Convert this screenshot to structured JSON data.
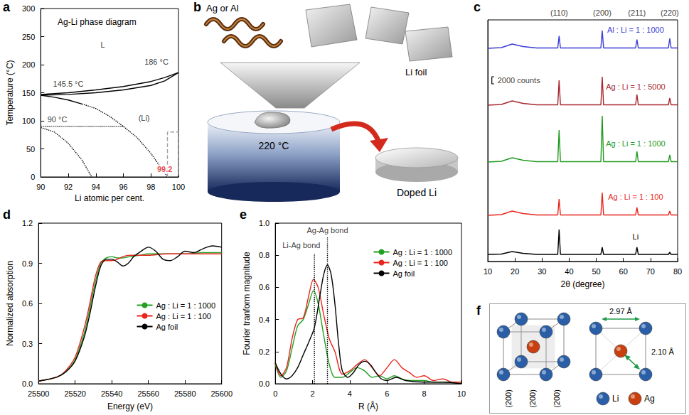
{
  "chart_data": [
    {
      "panel": "a",
      "type": "line",
      "title": "Ag-Li phase diagram",
      "x_label": "Li atomic per cent.",
      "y_label": "Temperature (°C)",
      "xlim": [
        90,
        100
      ],
      "xticks": [
        90,
        92,
        94,
        96,
        98,
        100
      ],
      "ylim": [
        0,
        300
      ],
      "yticks": [
        0,
        50,
        100,
        150,
        200,
        250,
        300
      ],
      "grid": false,
      "series": [
        {
          "x": [
            90,
            92,
            94,
            96,
            98,
            99,
            100
          ],
          "values": [
            147,
            150,
            155,
            161,
            170,
            177,
            186
          ],
          "color": "#000000",
          "line_style": "solid"
        },
        {
          "x": [
            90,
            92,
            94,
            96,
            98,
            99,
            100
          ],
          "values": [
            145.5,
            147,
            150,
            155,
            163,
            171,
            186
          ],
          "color": "#000000",
          "line_style": "solid"
        },
        {
          "x": [
            90,
            91,
            92,
            93
          ],
          "values": [
            145.5,
            142,
            137,
            130
          ],
          "color": "#000000",
          "line_style": "solid"
        },
        {
          "x": [
            93,
            94,
            95,
            96,
            97,
            98,
            99.2
          ],
          "values": [
            130,
            122,
            108,
            90,
            70,
            42,
            0
          ],
          "color": "#000000",
          "line_style": "dotted"
        },
        {
          "x": [
            90,
            96
          ],
          "values": [
            90,
            90
          ],
          "color": "#000000",
          "line_style": "dotted"
        },
        {
          "x": [
            90,
            91,
            92,
            93,
            93.7
          ],
          "values": [
            88,
            80,
            60,
            30,
            0
          ],
          "color": "#000000",
          "line_style": "dotted"
        },
        {
          "x": [
            99.2,
            99.2,
            100,
            100
          ],
          "values": [
            0,
            80,
            80,
            0
          ],
          "color": "#a0a0a0",
          "line_style": "dashed"
        }
      ],
      "annotations": [
        {
          "text": "L",
          "x": 94.5,
          "y": 235
        },
        {
          "text": "(Li)",
          "x": 97.5,
          "y": 105
        },
        {
          "text": "145.5 °C",
          "x": 92,
          "y": 166
        },
        {
          "text": "186 °C",
          "x": 98.4,
          "y": 205
        },
        {
          "text": "90 °C",
          "x": 91.2,
          "y": 103
        },
        {
          "text": "99.2",
          "x": 99,
          "y": 14,
          "color": "#e0201b"
        }
      ]
    },
    {
      "panel": "c",
      "type": "line",
      "x_label": "2θ (degree)",
      "xlim": [
        10,
        80
      ],
      "xticks": [
        10,
        20,
        30,
        40,
        50,
        60,
        70,
        80
      ],
      "ylim": [
        0,
        68000
      ],
      "tick_labels": "x",
      "grid": false,
      "x": [
        10,
        15,
        19,
        23,
        28,
        35.8,
        36.3,
        36.8,
        51.7,
        52.2,
        52.7,
        64.5,
        65,
        65.5,
        76.6,
        77.1,
        77.6,
        80
      ],
      "series": [
        {
          "name": "Al : Li = 1 : 1000",
          "color": "#3b3bd6",
          "values": [
            60000,
            60200,
            61200,
            60500,
            60100,
            60100,
            63500,
            60100,
            60100,
            65000,
            60100,
            60100,
            62500,
            60100,
            60100,
            62800,
            60100,
            60100
          ]
        },
        {
          "name": "Ag : Li = 1 : 5000",
          "color": "#a8262e",
          "values": [
            44000,
            44200,
            45200,
            44500,
            44100,
            44100,
            51000,
            44100,
            44100,
            52000,
            44100,
            44100,
            47000,
            44100,
            44100,
            46000,
            44100,
            44100
          ]
        },
        {
          "name": "Ag : Li = 1 : 1000",
          "color": "#1f9a1f",
          "values": [
            28000,
            28200,
            29200,
            28500,
            28100,
            28100,
            37000,
            28100,
            28100,
            41000,
            28100,
            28100,
            31000,
            28100,
            28100,
            30000,
            28100,
            28100
          ]
        },
        {
          "name": "Ag : Li = 1 : 100",
          "color": "#e8261e",
          "values": [
            13000,
            13200,
            14200,
            13500,
            13100,
            13100,
            17600,
            13100,
            13100,
            19400,
            13100,
            13100,
            15200,
            13100,
            13100,
            14200,
            13100,
            13100
          ]
        },
        {
          "name": "Li",
          "color": "#000000",
          "values": [
            2000,
            2100,
            2800,
            2300,
            2000,
            2000,
            9000,
            2000,
            2000,
            4000,
            2000,
            2000,
            4000,
            2000,
            2000,
            2600,
            2000,
            2000
          ]
        }
      ],
      "annotations": [
        {
          "text": "(110)",
          "x": 36.3,
          "y": 68000
        },
        {
          "text": "(200)",
          "x": 52.2,
          "y": 68000
        },
        {
          "text": "(211)",
          "x": 65,
          "y": 68000
        },
        {
          "text": "(220)",
          "x": 77.1,
          "y": 68000
        }
      ],
      "scale_bar": {
        "label": "2000 counts",
        "value": 2000,
        "x": 11.5,
        "y": 50000
      }
    },
    {
      "panel": "d",
      "type": "line",
      "x_label": "Energy (eV)",
      "y_label": "Normalized absorption",
      "xlim": [
        25500,
        25600
      ],
      "xticks": [
        25500,
        25520,
        25540,
        25560,
        25580,
        25600
      ],
      "ylim": [
        0,
        1.2
      ],
      "yticks": [
        {
          "value": 0,
          "label": "0.0"
        },
        0.3,
        0.6,
        0.9,
        1.2
      ],
      "grid": false,
      "legend": "lower right",
      "series": [
        {
          "name": "Ag : Li = 1 : 1000",
          "color": "#22a022",
          "x": [
            25500,
            25510,
            25515,
            25520,
            25525,
            25528,
            25531,
            25534,
            25537,
            25540,
            25543,
            25546,
            25550,
            25555,
            25560,
            25570,
            25580,
            25590,
            25600
          ],
          "values": [
            0.02,
            0.05,
            0.09,
            0.18,
            0.38,
            0.56,
            0.76,
            0.9,
            0.94,
            0.95,
            0.94,
            0.94,
            0.95,
            0.96,
            0.97,
            0.97,
            0.97,
            0.98,
            0.98
          ]
        },
        {
          "name": "Ag : Li = 1 : 100",
          "color": "#e8261e",
          "x": [
            25500,
            25510,
            25515,
            25520,
            25525,
            25528,
            25531,
            25534,
            25537,
            25540,
            25543,
            25546,
            25550,
            25555,
            25560,
            25570,
            25580,
            25590,
            25600
          ],
          "values": [
            0.02,
            0.05,
            0.1,
            0.2,
            0.42,
            0.6,
            0.8,
            0.91,
            0.92,
            0.92,
            0.93,
            0.95,
            0.96,
            0.96,
            0.96,
            0.97,
            0.97,
            0.97,
            0.97
          ]
        },
        {
          "name": "Ag foil",
          "color": "#000000",
          "x": [
            25500,
            25510,
            25515,
            25520,
            25525,
            25528,
            25531,
            25534,
            25537,
            25540,
            25543,
            25546,
            25549,
            25552,
            25556,
            25560,
            25564,
            25568,
            25572,
            25576,
            25580,
            25585,
            25590,
            25595,
            25600
          ],
          "values": [
            0.02,
            0.05,
            0.09,
            0.17,
            0.35,
            0.52,
            0.72,
            0.88,
            0.93,
            0.93,
            0.91,
            0.88,
            0.9,
            0.95,
            0.99,
            1.02,
            0.99,
            0.93,
            0.92,
            0.95,
            0.99,
            0.98,
            1.01,
            1.03,
            1.02
          ]
        }
      ]
    },
    {
      "panel": "e",
      "type": "line",
      "x_label": "R (Å)",
      "y_label": "Fourier tranform magnitude",
      "xlim": [
        0,
        10
      ],
      "xticks": [
        0,
        2,
        4,
        6,
        8,
        10
      ],
      "ylim": [
        0,
        1
      ],
      "yticks": [
        {
          "value": 0,
          "label": "0.0"
        },
        0.2,
        0.4,
        0.6,
        0.8,
        {
          "value": 1,
          "label": "1.0"
        }
      ],
      "grid": false,
      "legend": "upper right",
      "series": [
        {
          "name": "Ag : Li = 1 : 1000",
          "color": "#22a022",
          "x": [
            0,
            0.3,
            0.6,
            0.9,
            1.2,
            1.5,
            1.8,
            2.05,
            2.3,
            2.6,
            2.9,
            3.2,
            3.6,
            4.0,
            4.4,
            4.8,
            5.2,
            5.6,
            6.0,
            6.4,
            6.8,
            7.2,
            7.6,
            8.0,
            8.5,
            9,
            9.5,
            10
          ],
          "values": [
            0.12,
            0.04,
            0.08,
            0.22,
            0.36,
            0.4,
            0.5,
            0.58,
            0.5,
            0.3,
            0.12,
            0.04,
            0.04,
            0.07,
            0.1,
            0.08,
            0.04,
            0.05,
            0.03,
            0.05,
            0.03,
            0.02,
            0.02,
            0.02,
            0.01,
            0.01,
            0.01,
            0.01
          ]
        },
        {
          "name": "Ag : Li = 1 : 100",
          "color": "#e8261e",
          "x": [
            0,
            0.3,
            0.6,
            0.9,
            1.2,
            1.5,
            1.8,
            2.05,
            2.3,
            2.6,
            2.9,
            3.2,
            3.6,
            4.0,
            4.4,
            4.8,
            5.2,
            5.6,
            6.0,
            6.4,
            6.8,
            7.2,
            7.6,
            8.0,
            8.5,
            9,
            9.5,
            10
          ],
          "values": [
            0.13,
            0.05,
            0.1,
            0.28,
            0.4,
            0.41,
            0.55,
            0.65,
            0.6,
            0.43,
            0.28,
            0.2,
            0.06,
            0.08,
            0.12,
            0.15,
            0.1,
            0.05,
            0.1,
            0.15,
            0.1,
            0.07,
            0.04,
            0.05,
            0.02,
            0.03,
            0.01,
            0.01
          ]
        },
        {
          "name": "Ag foil",
          "color": "#000000",
          "x": [
            0,
            0.3,
            0.6,
            0.9,
            1.2,
            1.5,
            1.8,
            2.1,
            2.4,
            2.6,
            2.8,
            3.0,
            3.2,
            3.4,
            3.6,
            3.9,
            4.2,
            4.5,
            4.8,
            5.1,
            5.4,
            5.7,
            6.0,
            6.5,
            7,
            8,
            9,
            10
          ],
          "values": [
            0.13,
            0.06,
            0.03,
            0.05,
            0.1,
            0.18,
            0.26,
            0.35,
            0.55,
            0.68,
            0.74,
            0.68,
            0.5,
            0.25,
            0.08,
            0.04,
            0.07,
            0.12,
            0.14,
            0.12,
            0.07,
            0.03,
            0.02,
            0.04,
            0.02,
            0.01,
            0.01,
            0
          ]
        },
        {
          "x": [
            2.1,
            2.1
          ],
          "values": [
            0,
            0.81
          ],
          "color": "#000000",
          "line_style": "dotted"
        },
        {
          "x": [
            2.8,
            2.8
          ],
          "values": [
            0,
            0.91
          ],
          "color": "#000000",
          "line_style": "dotted"
        }
      ],
      "annotations": [
        {
          "text": "Li-Ag bond",
          "x": 1.4,
          "y": 0.865
        },
        {
          "text": "Ag-Ag bond",
          "x": 2.8,
          "y": 0.955
        }
      ]
    }
  ],
  "diagrams": {
    "b": {
      "panel": "b",
      "dopant": "Ag or Al",
      "foil": "Li foil",
      "temperature": "220 °C",
      "product": "Doped Li"
    },
    "f": {
      "panel": "f",
      "plane_labels": [
        "(200)",
        "(200)",
        "(200)"
      ],
      "distance_labels": [
        "2.97 Å",
        "2.10 Å"
      ],
      "atoms": [
        {
          "name": "Li",
          "color": "#2a5fa8"
        },
        {
          "name": "Ag",
          "color": "#c8400f"
        }
      ]
    }
  }
}
